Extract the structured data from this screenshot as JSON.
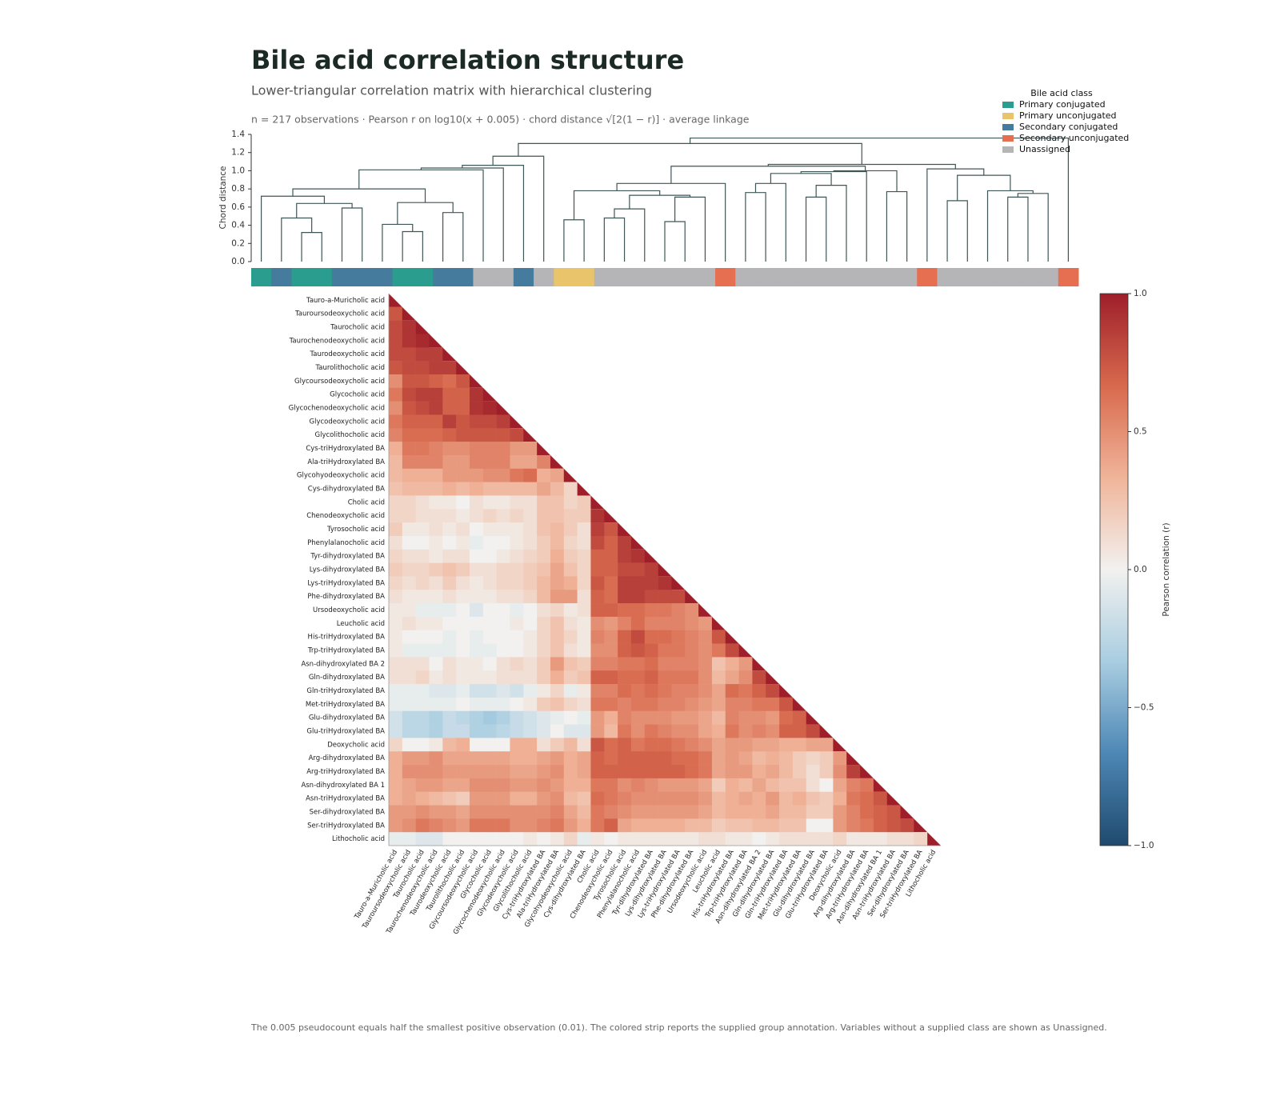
{
  "chart_data": {
    "type": "heatmap",
    "title": "Bile acid correlation structure",
    "subtitle": "Lower-triangular correlation matrix with hierarchical clustering",
    "note": "n = 217 observations · Pearson r on log10(x + 0.005) · chord distance √[2(1 − r)] · average linkage",
    "footer": "The 0.005 pseudocount equals half the smallest positive observation (0.01). The colored strip reports the supplied group annotation. Variables without a supplied class are shown as Unassigned.",
    "variables": [
      "Tauro-a-Muricholic acid",
      "Tauroursodeoxycholic acid",
      "Taurocholic acid",
      "Taurochenodeoxycholic acid",
      "Taurodeoxycholic acid",
      "Taurolithocholic acid",
      "Glycoursodeoxycholic acid",
      "Glycocholic acid",
      "Glycochenodeoxycholic acid",
      "Glycodeoxycholic acid",
      "Glycolithocholic acid",
      "Cys-triHydroxylated BA",
      "Ala-triHydroxylated BA",
      "Glycohyodeoxycholic acid",
      "Cys-dihydroxylated BA",
      "Cholic acid",
      "Chenodeoxycholic acid",
      "Tyrosocholic acid",
      "Phenylalanocholic acid",
      "Tyr-dihydroxylated BA",
      "Lys-dihydroxylated BA",
      "Lys-triHydroxylated BA",
      "Phe-dihydroxylated BA",
      "Ursodeoxycholic acid",
      "Leucholic acid",
      "His-triHydroxylated BA",
      "Trp-triHydroxylated BA",
      "Asn-dihydroxylated BA 2",
      "Gln-dihydroxylated BA",
      "Gln-triHydroxylated BA",
      "Met-triHydroxylated BA",
      "Glu-dihydroxylated BA",
      "Glu-triHydroxylated BA",
      "Deoxycholic acid",
      "Arg-dihydroxylated BA",
      "Arg-triHydroxylated BA",
      "Asn-dihydroxylated BA 1",
      "Asn-triHydroxylated BA",
      "Ser-dihydroxylated BA",
      "Ser-triHydroxylated BA",
      "Lithocholic acid"
    ],
    "matrix": [
      [
        1
      ],
      [
        0.75,
        1
      ],
      [
        0.8,
        0.9,
        1
      ],
      [
        0.8,
        0.9,
        0.95,
        1
      ],
      [
        0.8,
        0.8,
        0.85,
        0.85,
        1
      ],
      [
        0.75,
        0.8,
        0.8,
        0.85,
        0.85,
        1
      ],
      [
        0.5,
        0.75,
        0.75,
        0.7,
        0.65,
        0.75,
        1
      ],
      [
        0.6,
        0.8,
        0.85,
        0.85,
        0.7,
        0.7,
        0.9,
        1
      ],
      [
        0.5,
        0.75,
        0.8,
        0.85,
        0.7,
        0.7,
        0.9,
        0.95,
        1
      ],
      [
        0.6,
        0.7,
        0.7,
        0.7,
        0.85,
        0.75,
        0.8,
        0.8,
        0.85,
        1
      ],
      [
        0.55,
        0.65,
        0.65,
        0.65,
        0.7,
        0.75,
        0.75,
        0.75,
        0.75,
        0.8,
        1
      ],
      [
        0.35,
        0.6,
        0.6,
        0.55,
        0.5,
        0.5,
        0.55,
        0.55,
        0.55,
        0.45,
        0.45,
        1
      ],
      [
        0.3,
        0.55,
        0.55,
        0.55,
        0.45,
        0.45,
        0.55,
        0.55,
        0.55,
        0.4,
        0.4,
        0.55,
        1
      ],
      [
        0.3,
        0.35,
        0.35,
        0.35,
        0.45,
        0.45,
        0.45,
        0.5,
        0.5,
        0.6,
        0.65,
        0.35,
        0.4,
        1
      ],
      [
        0.25,
        0.3,
        0.3,
        0.3,
        0.35,
        0.3,
        0.35,
        0.3,
        0.3,
        0.3,
        0.3,
        0.4,
        0.3,
        0.15,
        1
      ],
      [
        0.15,
        0.15,
        0.1,
        0.05,
        0.05,
        0.0,
        0.1,
        0.05,
        0.05,
        0.1,
        0.1,
        0.25,
        0.25,
        0.15,
        0.2,
        1
      ],
      [
        0.15,
        0.15,
        0.1,
        0.1,
        0.1,
        0.05,
        0.1,
        0.15,
        0.1,
        0.15,
        0.1,
        0.25,
        0.25,
        0.2,
        0.2,
        0.9,
        1
      ],
      [
        0.2,
        0.05,
        0.05,
        0.1,
        0.05,
        0.1,
        0.0,
        0.05,
        0.05,
        0.05,
        0.1,
        0.25,
        0.3,
        0.2,
        0.1,
        0.85,
        0.75,
        1
      ],
      [
        0.1,
        0.0,
        0.0,
        0.05,
        0.0,
        0.05,
        -0.05,
        0.0,
        0.0,
        0.05,
        0.1,
        0.2,
        0.3,
        0.15,
        0.1,
        0.8,
        0.7,
        0.85,
        1
      ],
      [
        0.15,
        0.1,
        0.1,
        0.05,
        0.1,
        0.1,
        0.0,
        0.0,
        0.05,
        0.1,
        0.15,
        0.2,
        0.35,
        0.2,
        0.15,
        0.7,
        0.7,
        0.85,
        0.9,
        1
      ],
      [
        0.2,
        0.15,
        0.15,
        0.2,
        0.25,
        0.2,
        0.1,
        0.1,
        0.15,
        0.15,
        0.2,
        0.25,
        0.4,
        0.25,
        0.15,
        0.7,
        0.7,
        0.8,
        0.8,
        0.85,
        1
      ],
      [
        0.15,
        0.1,
        0.15,
        0.1,
        0.2,
        0.1,
        0.05,
        0.1,
        0.15,
        0.15,
        0.2,
        0.3,
        0.4,
        0.35,
        0.15,
        0.75,
        0.65,
        0.85,
        0.85,
        0.85,
        0.9,
        1
      ],
      [
        0.1,
        0.05,
        0.05,
        0.05,
        0.1,
        0.05,
        0.05,
        0.05,
        0.1,
        0.1,
        0.15,
        0.3,
        0.45,
        0.45,
        0.1,
        0.7,
        0.65,
        0.85,
        0.85,
        0.8,
        0.8,
        0.8,
        1
      ],
      [
        0.05,
        0.05,
        -0.05,
        -0.05,
        -0.05,
        0.0,
        -0.1,
        0.0,
        0.0,
        -0.05,
        0.0,
        0.1,
        0.15,
        0.05,
        0.1,
        0.7,
        0.7,
        0.65,
        0.65,
        0.6,
        0.6,
        0.55,
        0.5,
        1
      ],
      [
        0.05,
        0.1,
        0.05,
        0.05,
        0.0,
        0.0,
        0.0,
        0.0,
        0.0,
        0.05,
        0.0,
        0.15,
        0.25,
        0.1,
        0.05,
        0.5,
        0.45,
        0.55,
        0.65,
        0.55,
        0.55,
        0.55,
        0.5,
        0.45,
        1
      ],
      [
        0.05,
        0.0,
        0.0,
        0.0,
        -0.05,
        0.0,
        -0.05,
        0.0,
        0.0,
        0.0,
        0.05,
        0.15,
        0.25,
        0.15,
        0.05,
        0.55,
        0.5,
        0.7,
        0.8,
        0.65,
        0.65,
        0.6,
        0.55,
        0.5,
        0.75,
        1
      ],
      [
        0.05,
        -0.05,
        -0.05,
        -0.05,
        -0.05,
        0.0,
        -0.05,
        -0.05,
        0.0,
        0.0,
        0.05,
        0.15,
        0.25,
        0.1,
        0.05,
        0.5,
        0.5,
        0.7,
        0.75,
        0.7,
        0.6,
        0.6,
        0.55,
        0.5,
        0.6,
        0.8,
        1
      ],
      [
        0.1,
        0.1,
        0.1,
        0.0,
        0.1,
        0.05,
        0.05,
        0.0,
        0.1,
        0.15,
        0.1,
        0.2,
        0.45,
        0.25,
        0.2,
        0.55,
        0.55,
        0.6,
        0.6,
        0.65,
        0.55,
        0.55,
        0.55,
        0.5,
        0.25,
        0.35,
        0.45,
        1
      ],
      [
        0.1,
        0.1,
        0.15,
        0.05,
        0.1,
        0.05,
        0.05,
        0.05,
        0.1,
        0.1,
        0.1,
        0.2,
        0.35,
        0.2,
        0.25,
        0.7,
        0.7,
        0.65,
        0.65,
        0.7,
        0.6,
        0.6,
        0.6,
        0.5,
        0.3,
        0.4,
        0.5,
        0.8,
        1
      ],
      [
        -0.05,
        -0.05,
        -0.05,
        -0.1,
        -0.1,
        -0.05,
        -0.15,
        -0.15,
        -0.1,
        -0.15,
        -0.05,
        0.05,
        0.15,
        -0.05,
        0.05,
        0.55,
        0.55,
        0.65,
        0.6,
        0.65,
        0.6,
        0.55,
        0.55,
        0.5,
        0.4,
        0.65,
        0.6,
        0.7,
        0.8,
        1
      ],
      [
        -0.05,
        -0.05,
        -0.05,
        -0.05,
        -0.05,
        0.0,
        -0.05,
        -0.05,
        -0.05,
        0.0,
        0.05,
        0.2,
        0.25,
        0.15,
        0.1,
        0.6,
        0.6,
        0.55,
        0.6,
        0.6,
        0.55,
        0.55,
        0.5,
        0.45,
        0.4,
        0.55,
        0.55,
        0.6,
        0.6,
        0.75,
        1
      ],
      [
        -0.15,
        -0.25,
        -0.25,
        -0.3,
        -0.2,
        -0.25,
        -0.3,
        -0.35,
        -0.3,
        -0.2,
        -0.15,
        -0.1,
        -0.05,
        0.0,
        -0.05,
        0.45,
        0.35,
        0.55,
        0.5,
        0.5,
        0.5,
        0.45,
        0.45,
        0.4,
        0.3,
        0.55,
        0.5,
        0.5,
        0.45,
        0.65,
        0.7,
        1
      ],
      [
        -0.15,
        -0.25,
        -0.25,
        -0.3,
        -0.2,
        -0.2,
        -0.3,
        -0.3,
        -0.25,
        -0.2,
        -0.15,
        -0.1,
        0.0,
        -0.1,
        -0.1,
        0.45,
        0.3,
        0.6,
        0.5,
        0.6,
        0.55,
        0.5,
        0.5,
        0.4,
        0.35,
        0.6,
        0.5,
        0.55,
        0.5,
        0.7,
        0.7,
        0.8,
        1
      ],
      [
        0.15,
        0.0,
        0.0,
        0.05,
        0.3,
        0.35,
        0.0,
        0.0,
        0.0,
        0.35,
        0.35,
        0.1,
        0.2,
        0.3,
        0.1,
        0.75,
        0.65,
        0.7,
        0.6,
        0.65,
        0.65,
        0.6,
        0.55,
        0.5,
        0.4,
        0.45,
        0.45,
        0.4,
        0.4,
        0.35,
        0.35,
        0.4,
        0.4,
        1
      ],
      [
        0.35,
        0.45,
        0.45,
        0.5,
        0.4,
        0.4,
        0.4,
        0.4,
        0.4,
        0.35,
        0.35,
        0.4,
        0.45,
        0.35,
        0.4,
        0.7,
        0.65,
        0.7,
        0.7,
        0.7,
        0.7,
        0.65,
        0.65,
        0.6,
        0.4,
        0.45,
        0.4,
        0.3,
        0.35,
        0.3,
        0.2,
        0.15,
        0.2,
        0.45,
        1
      ],
      [
        0.35,
        0.5,
        0.5,
        0.5,
        0.45,
        0.45,
        0.45,
        0.45,
        0.45,
        0.4,
        0.4,
        0.45,
        0.5,
        0.35,
        0.4,
        0.7,
        0.7,
        0.7,
        0.7,
        0.7,
        0.7,
        0.7,
        0.65,
        0.6,
        0.4,
        0.45,
        0.45,
        0.35,
        0.4,
        0.3,
        0.2,
        0.1,
        0.2,
        0.5,
        0.85,
        1
      ],
      [
        0.35,
        0.4,
        0.45,
        0.45,
        0.4,
        0.4,
        0.5,
        0.5,
        0.5,
        0.45,
        0.45,
        0.5,
        0.45,
        0.35,
        0.35,
        0.6,
        0.6,
        0.5,
        0.55,
        0.5,
        0.45,
        0.45,
        0.45,
        0.4,
        0.2,
        0.35,
        0.3,
        0.4,
        0.3,
        0.25,
        0.25,
        0.1,
        0.0,
        0.4,
        0.55,
        0.6,
        1
      ],
      [
        0.35,
        0.4,
        0.35,
        0.3,
        0.25,
        0.2,
        0.45,
        0.45,
        0.45,
        0.35,
        0.35,
        0.45,
        0.5,
        0.3,
        0.25,
        0.65,
        0.6,
        0.55,
        0.5,
        0.5,
        0.5,
        0.5,
        0.5,
        0.45,
        0.3,
        0.35,
        0.4,
        0.35,
        0.45,
        0.3,
        0.35,
        0.25,
        0.2,
        0.35,
        0.6,
        0.65,
        0.75,
        1
      ],
      [
        0.45,
        0.45,
        0.5,
        0.45,
        0.45,
        0.4,
        0.5,
        0.5,
        0.5,
        0.5,
        0.5,
        0.5,
        0.55,
        0.4,
        0.3,
        0.6,
        0.55,
        0.5,
        0.45,
        0.45,
        0.45,
        0.45,
        0.45,
        0.4,
        0.3,
        0.35,
        0.35,
        0.35,
        0.4,
        0.3,
        0.3,
        0.2,
        0.2,
        0.45,
        0.55,
        0.65,
        0.7,
        0.75,
        1
      ],
      [
        0.45,
        0.5,
        0.6,
        0.55,
        0.5,
        0.45,
        0.6,
        0.6,
        0.6,
        0.5,
        0.5,
        0.55,
        0.6,
        0.45,
        0.35,
        0.6,
        0.7,
        0.4,
        0.35,
        0.35,
        0.35,
        0.35,
        0.3,
        0.3,
        0.2,
        0.25,
        0.25,
        0.3,
        0.3,
        0.25,
        0.25,
        0.0,
        0.0,
        0.45,
        0.55,
        0.6,
        0.7,
        0.75,
        0.8,
        1
      ],
      [
        -0.05,
        -0.05,
        -0.1,
        -0.1,
        0.0,
        0.0,
        0.0,
        0.0,
        0.0,
        0.0,
        0.05,
        0.0,
        0.05,
        0.15,
        -0.05,
        0.05,
        0.0,
        0.05,
        0.05,
        0.05,
        0.05,
        0.05,
        0.05,
        0.1,
        0.1,
        0.05,
        0.05,
        0.0,
        0.05,
        0.1,
        0.1,
        0.1,
        0.1,
        0.15,
        0.05,
        0.05,
        0.05,
        0.1,
        0.1,
        0.15,
        1
      ]
    ],
    "colorbar": {
      "label": "Pearson correlation (r)",
      "lim": [
        -1,
        1
      ],
      "ticks": [
        {
          "value": 1,
          "label": "1.0"
        },
        {
          "value": 0.5,
          "label": "0.5"
        },
        {
          "value": 0,
          "label": "0.0"
        },
        {
          "value": -0.5,
          "label": "−0.5"
        },
        {
          "value": -1,
          "label": "−1.0"
        }
      ],
      "colormap": [
        "#1f4a6e",
        "#4d87b5",
        "#a9cde1",
        "#f2f1ef",
        "#f0b499",
        "#d8694d",
        "#9e1f2a"
      ]
    },
    "dendrogram": {
      "ylabel": "Chord distance",
      "ylim": [
        0,
        1.4
      ],
      "color": "#3f5656",
      "yticks": [
        {
          "value": 0,
          "label": "0.0"
        },
        0.2,
        0.4,
        0.6,
        0.8,
        {
          "value": 1,
          "label": "1.0"
        },
        1.2,
        1.4
      ],
      "linkage": [
        [
          2,
          3,
          0.32
        ],
        [
          1,
          41,
          0.48
        ],
        [
          4,
          5,
          0.59
        ],
        [
          42,
          43,
          0.64
        ],
        [
          0,
          44,
          0.72
        ],
        [
          7,
          8,
          0.33
        ],
        [
          6,
          46,
          0.41
        ],
        [
          9,
          10,
          0.54
        ],
        [
          47,
          48,
          0.65
        ],
        [
          45,
          49,
          0.8
        ],
        [
          50,
          11,
          1.01
        ],
        [
          51,
          12,
          1.03
        ],
        [
          52,
          13,
          1.06
        ],
        [
          53,
          14,
          1.16
        ],
        [
          15,
          16,
          0.46
        ],
        [
          17,
          18,
          0.48
        ],
        [
          56,
          19,
          0.58
        ],
        [
          20,
          21,
          0.44
        ],
        [
          58,
          22,
          0.71
        ],
        [
          57,
          59,
          0.73
        ],
        [
          55,
          60,
          0.78
        ],
        [
          61,
          23,
          0.86
        ],
        [
          24,
          25,
          0.76
        ],
        [
          63,
          26,
          0.86
        ],
        [
          27,
          28,
          0.71
        ],
        [
          65,
          29,
          0.84
        ],
        [
          64,
          66,
          0.97
        ],
        [
          67,
          30,
          0.99
        ],
        [
          31,
          32,
          0.77
        ],
        [
          68,
          69,
          1.0
        ],
        [
          62,
          70,
          1.05
        ],
        [
          34,
          35,
          0.67
        ],
        [
          37,
          38,
          0.71
        ],
        [
          73,
          39,
          0.75
        ],
        [
          36,
          74,
          0.78
        ],
        [
          72,
          75,
          0.95
        ],
        [
          33,
          76,
          1.02
        ],
        [
          71,
          77,
          1.07
        ],
        [
          54,
          78,
          1.3
        ],
        [
          79,
          40,
          1.36
        ]
      ]
    },
    "legend": {
      "title": "Bile acid class",
      "corner": "upper right",
      "classes": [
        {
          "name": "Primary conjugated",
          "color": "#2a9d8f"
        },
        {
          "name": "Primary unconjugated",
          "color": "#e9c46a"
        },
        {
          "name": "Secondary conjugated",
          "color": "#457b9d"
        },
        {
          "name": "Secondary unconjugated",
          "color": "#e76f51"
        },
        {
          "name": "Unassigned",
          "color": "#b5b5b8"
        }
      ]
    },
    "class_of": [
      0,
      2,
      0,
      0,
      2,
      2,
      2,
      0,
      0,
      2,
      2,
      4,
      4,
      2,
      4,
      1,
      1,
      4,
      4,
      4,
      4,
      4,
      4,
      3,
      4,
      4,
      4,
      4,
      4,
      4,
      4,
      4,
      4,
      3,
      4,
      4,
      4,
      4,
      4,
      4,
      3
    ]
  }
}
